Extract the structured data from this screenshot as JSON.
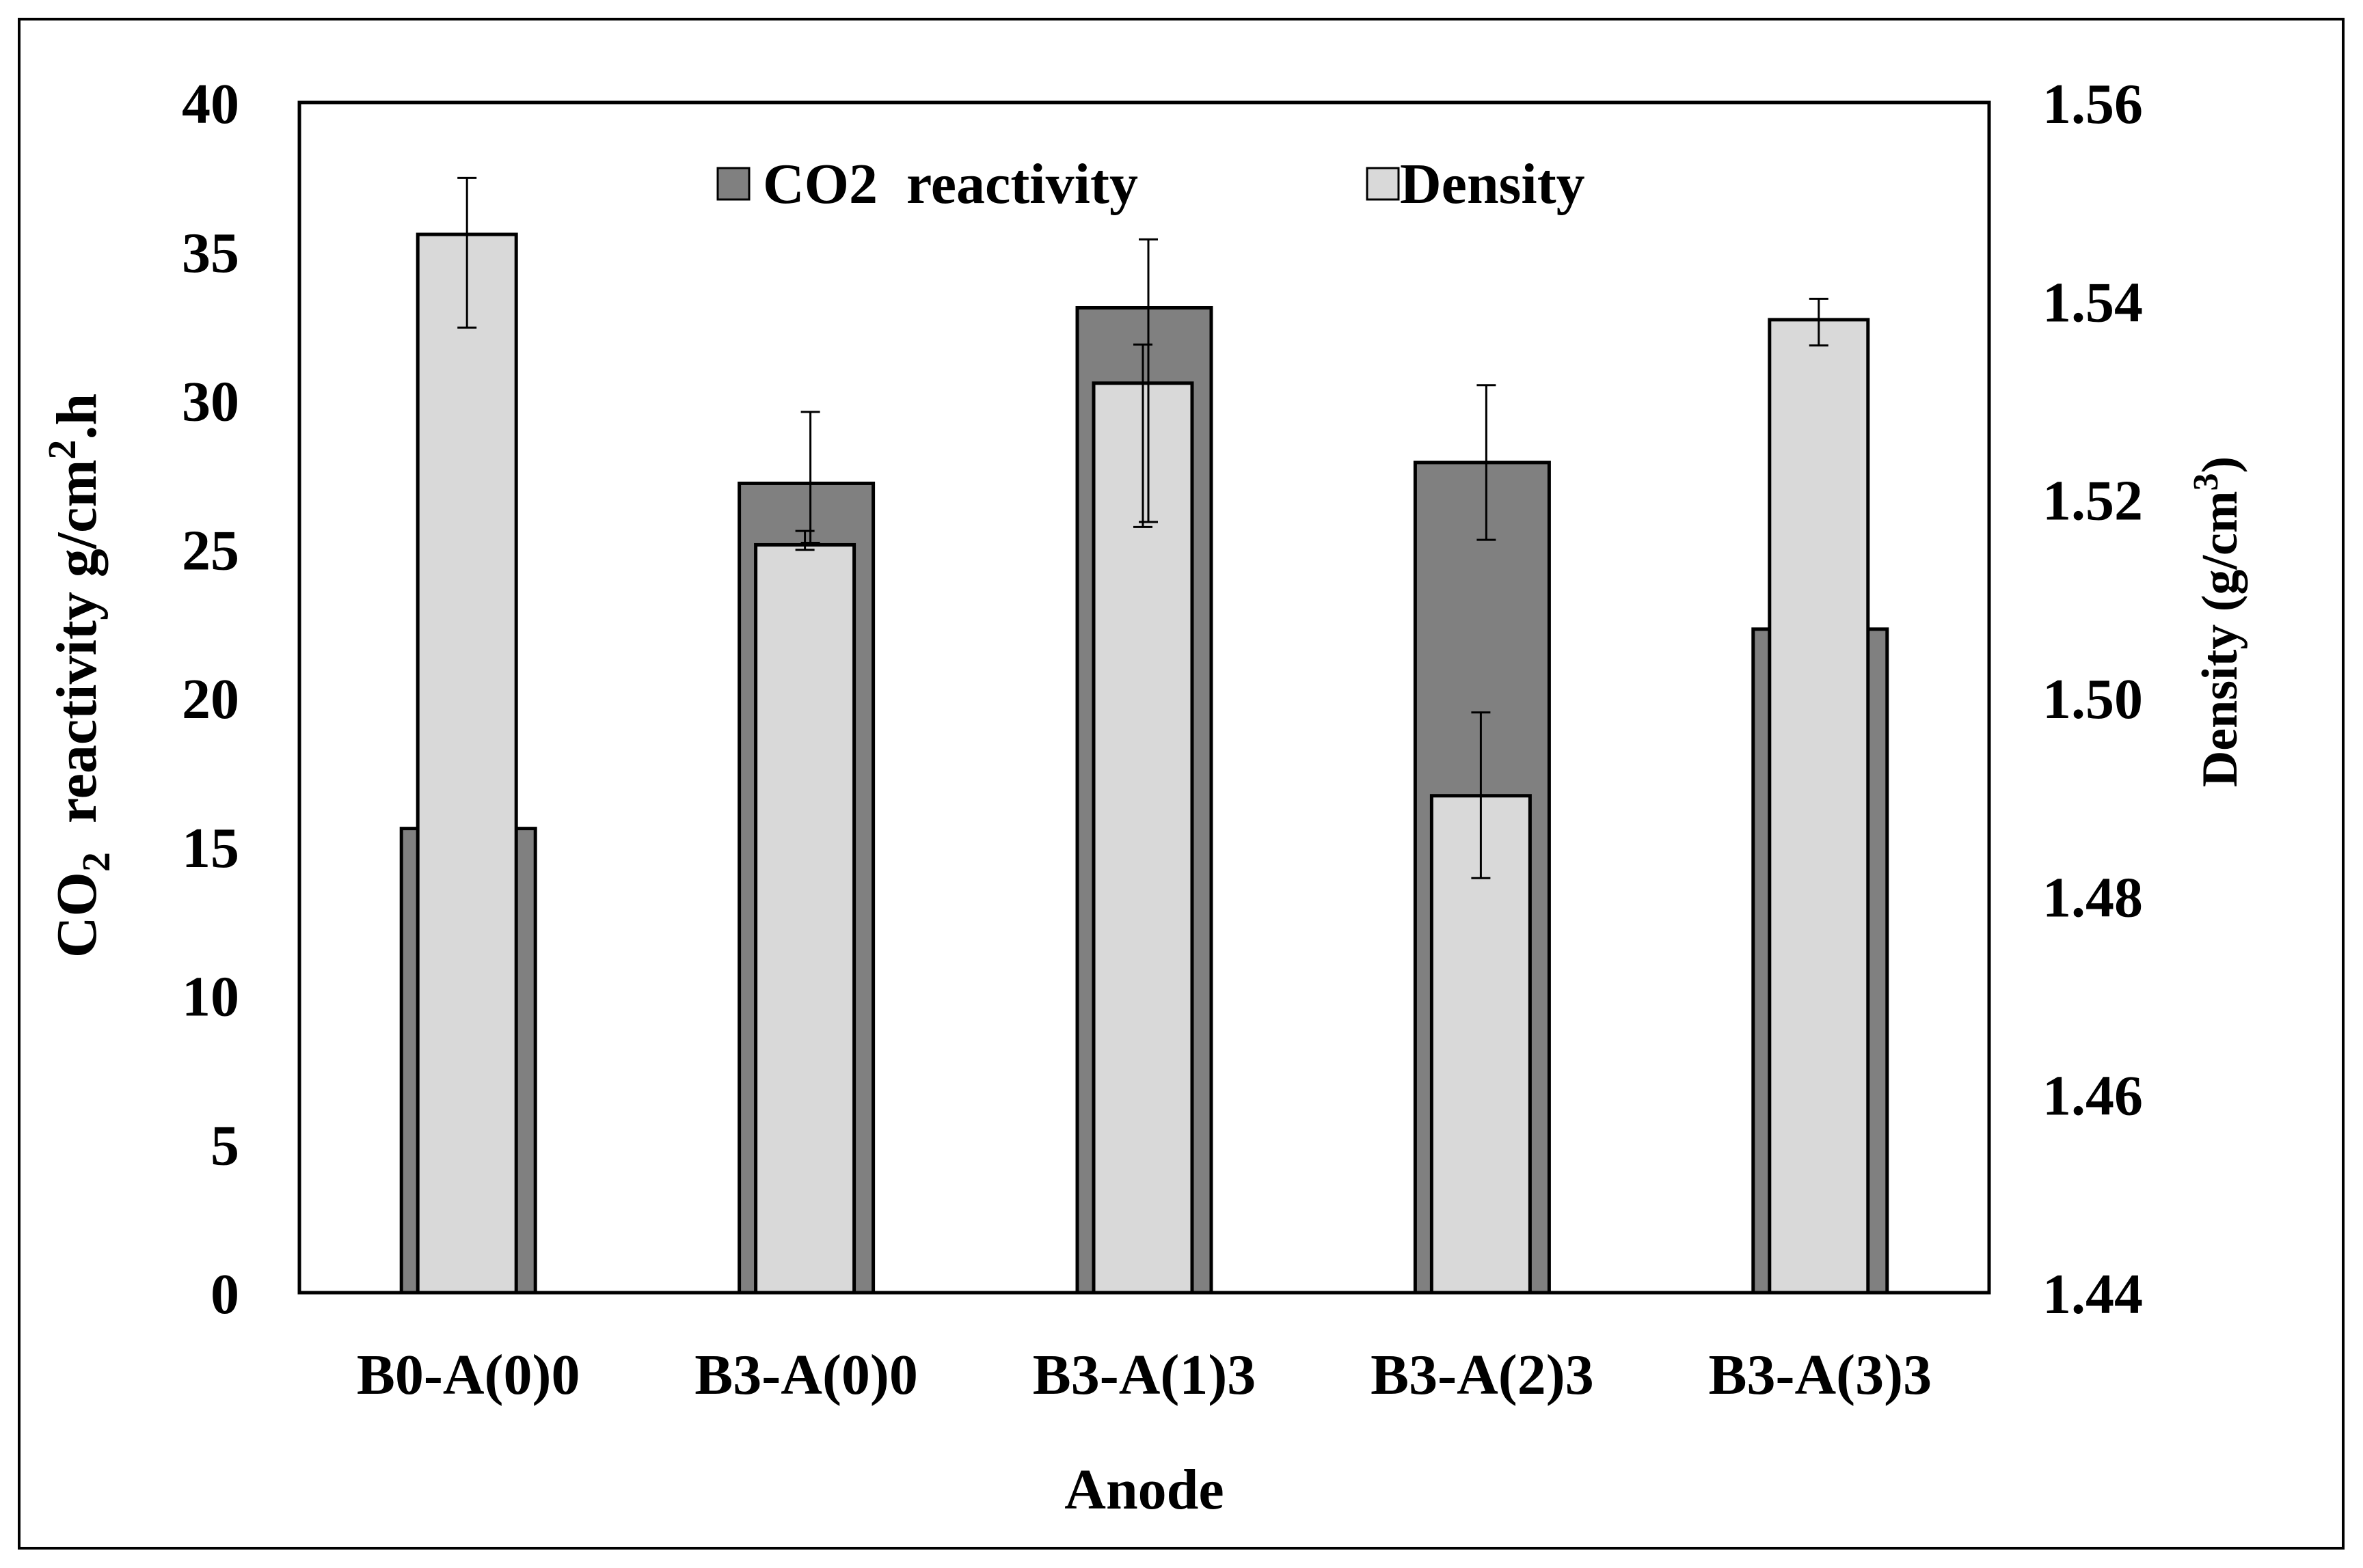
{
  "chart_data": {
    "type": "bar",
    "xlabel": "Anode",
    "ylabel": {
      "prefix": "CO",
      "sub": "2",
      "middle": "  reactivity g/cm",
      "sup": "2",
      "suffix": ".h"
    },
    "y2label": {
      "prefix": "Density (g/cm",
      "sup": "3",
      "suffix": ")"
    },
    "categories": [
      "B0-A(0)0",
      "B3-A(0)0",
      "B3-A(1)3",
      "B3-A(2)3",
      "B3-A(3)3"
    ],
    "ylim": [
      0,
      40
    ],
    "yticks": [
      "0",
      "5",
      "10",
      "15",
      "20",
      "25",
      "30",
      "35",
      "40"
    ],
    "y2lim": [
      1.44,
      1.56
    ],
    "y2ticks": [
      "1.44",
      "1.46",
      "1.48",
      "1.50",
      "1.52",
      "1.54",
      "1.56"
    ],
    "series": [
      {
        "name": "CO2  reactivity",
        "axis": "left",
        "color": "#808080",
        "values": [
          15.6,
          27.2,
          33.1,
          27.9,
          22.3
        ],
        "error_low": [
          null,
          25.2,
          25.9,
          25.3,
          null
        ],
        "error_high": [
          null,
          29.6,
          35.4,
          30.5,
          null
        ]
      },
      {
        "name": "Density",
        "axis": "right",
        "color": "#d9d9d9",
        "values": [
          1.5467,
          1.5154,
          1.5317,
          1.4901,
          1.5381
        ],
        "error_low": [
          1.5373,
          1.5149,
          1.5172,
          1.4818,
          1.5355
        ],
        "error_high": [
          1.5524,
          1.5168,
          1.5356,
          1.4985,
          1.5402
        ]
      }
    ]
  }
}
